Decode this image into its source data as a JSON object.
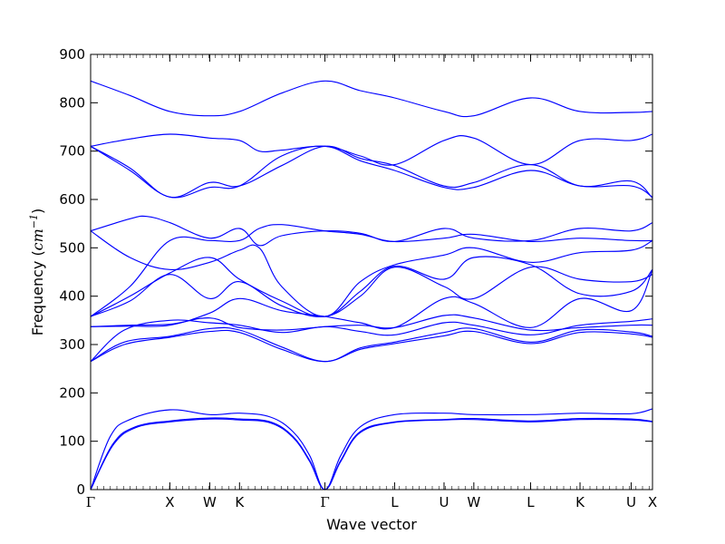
{
  "chart_data": {
    "type": "line",
    "xlabel": "Wave vector",
    "ylabel_text": "Frequency (",
    "ylabel_unit": "cm",
    "ylabel_exp": "−1",
    "ylabel_close": ")",
    "ylim": [
      0,
      900
    ],
    "yticks": [
      0,
      100,
      200,
      300,
      400,
      500,
      600,
      700,
      800,
      900
    ],
    "xlim": [
      0,
      1
    ],
    "high_symmetry_points": [
      {
        "label": "Γ",
        "x": 0.0
      },
      {
        "label": "X",
        "x": 0.141
      },
      {
        "label": "W",
        "x": 0.212
      },
      {
        "label": "K",
        "x": 0.265
      },
      {
        "label": "Γ",
        "x": 0.417
      },
      {
        "label": "L",
        "x": 0.541
      },
      {
        "label": "U",
        "x": 0.629
      },
      {
        "label": "W",
        "x": 0.682
      },
      {
        "label": "L",
        "x": 0.783
      },
      {
        "label": "K",
        "x": 0.871
      },
      {
        "label": "U",
        "x": 0.962
      },
      {
        "label": "X",
        "x": 1.0
      }
    ],
    "series": [
      {
        "points": [
          [
            0,
            0
          ],
          [
            0.035,
            110
          ],
          [
            0.07,
            145
          ],
          [
            0.141,
            165
          ],
          [
            0.212,
            155
          ],
          [
            0.265,
            158
          ],
          [
            0.32,
            150
          ],
          [
            0.36,
            120
          ],
          [
            0.39,
            70
          ],
          [
            0.417,
            0
          ],
          [
            0.445,
            70
          ],
          [
            0.48,
            130
          ],
          [
            0.541,
            155
          ],
          [
            0.629,
            158
          ],
          [
            0.682,
            155
          ],
          [
            0.783,
            155
          ],
          [
            0.871,
            158
          ],
          [
            0.962,
            157
          ],
          [
            1.0,
            167
          ]
        ]
      },
      {
        "points": [
          [
            0,
            0
          ],
          [
            0.04,
            95
          ],
          [
            0.08,
            130
          ],
          [
            0.141,
            142
          ],
          [
            0.212,
            148
          ],
          [
            0.265,
            146
          ],
          [
            0.32,
            140
          ],
          [
            0.36,
            110
          ],
          [
            0.39,
            60
          ],
          [
            0.417,
            0
          ],
          [
            0.445,
            60
          ],
          [
            0.48,
            120
          ],
          [
            0.541,
            140
          ],
          [
            0.629,
            145
          ],
          [
            0.682,
            147
          ],
          [
            0.783,
            142
          ],
          [
            0.871,
            147
          ],
          [
            0.962,
            146
          ],
          [
            1.0,
            141
          ]
        ]
      },
      {
        "points": [
          [
            0,
            0
          ],
          [
            0.04,
            92
          ],
          [
            0.08,
            128
          ],
          [
            0.141,
            140
          ],
          [
            0.212,
            146
          ],
          [
            0.265,
            144
          ],
          [
            0.32,
            138
          ],
          [
            0.36,
            108
          ],
          [
            0.39,
            58
          ],
          [
            0.417,
            0
          ],
          [
            0.445,
            58
          ],
          [
            0.48,
            118
          ],
          [
            0.541,
            139
          ],
          [
            0.629,
            144
          ],
          [
            0.682,
            145
          ],
          [
            0.783,
            140
          ],
          [
            0.871,
            145
          ],
          [
            0.962,
            144
          ],
          [
            1.0,
            140
          ]
        ]
      },
      {
        "points": [
          [
            0,
            265
          ],
          [
            0.06,
            300
          ],
          [
            0.141,
            315
          ],
          [
            0.212,
            327
          ],
          [
            0.265,
            325
          ],
          [
            0.34,
            290
          ],
          [
            0.417,
            265
          ],
          [
            0.48,
            290
          ],
          [
            0.541,
            302
          ],
          [
            0.629,
            318
          ],
          [
            0.682,
            327
          ],
          [
            0.783,
            302
          ],
          [
            0.871,
            325
          ],
          [
            0.962,
            322
          ],
          [
            1.0,
            315
          ]
        ]
      },
      {
        "points": [
          [
            0,
            265
          ],
          [
            0.06,
            305
          ],
          [
            0.141,
            317
          ],
          [
            0.212,
            333
          ],
          [
            0.265,
            330
          ],
          [
            0.34,
            295
          ],
          [
            0.417,
            265
          ],
          [
            0.48,
            293
          ],
          [
            0.541,
            305
          ],
          [
            0.629,
            325
          ],
          [
            0.682,
            333
          ],
          [
            0.783,
            305
          ],
          [
            0.871,
            330
          ],
          [
            0.962,
            326
          ],
          [
            1.0,
            317
          ]
        ]
      },
      {
        "points": [
          [
            0,
            265
          ],
          [
            0.06,
            330
          ],
          [
            0.141,
            350
          ],
          [
            0.212,
            345
          ],
          [
            0.265,
            340
          ],
          [
            0.34,
            325
          ],
          [
            0.417,
            337
          ],
          [
            0.48,
            327
          ],
          [
            0.541,
            320
          ],
          [
            0.629,
            345
          ],
          [
            0.682,
            340
          ],
          [
            0.783,
            320
          ],
          [
            0.871,
            340
          ],
          [
            0.962,
            348
          ],
          [
            1.0,
            353
          ]
        ]
      },
      {
        "points": [
          [
            0,
            337
          ],
          [
            0.07,
            340
          ],
          [
            0.141,
            342
          ],
          [
            0.212,
            355
          ],
          [
            0.265,
            335
          ],
          [
            0.34,
            330
          ],
          [
            0.417,
            337
          ],
          [
            0.48,
            340
          ],
          [
            0.541,
            335
          ],
          [
            0.629,
            360
          ],
          [
            0.682,
            355
          ],
          [
            0.783,
            330
          ],
          [
            0.871,
            335
          ],
          [
            0.962,
            340
          ],
          [
            1.0,
            340
          ]
        ]
      },
      {
        "points": [
          [
            0,
            337
          ],
          [
            0.07,
            338
          ],
          [
            0.141,
            340
          ],
          [
            0.212,
            365
          ],
          [
            0.265,
            395
          ],
          [
            0.34,
            370
          ],
          [
            0.417,
            358
          ],
          [
            0.48,
            345
          ],
          [
            0.541,
            335
          ],
          [
            0.629,
            395
          ],
          [
            0.682,
            385
          ],
          [
            0.783,
            335
          ],
          [
            0.871,
            395
          ],
          [
            0.962,
            370
          ],
          [
            1.0,
            455
          ]
        ]
      },
      {
        "points": [
          [
            0,
            358
          ],
          [
            0.07,
            390
          ],
          [
            0.141,
            445
          ],
          [
            0.212,
            395
          ],
          [
            0.265,
            430
          ],
          [
            0.34,
            380
          ],
          [
            0.417,
            358
          ],
          [
            0.48,
            400
          ],
          [
            0.541,
            460
          ],
          [
            0.629,
            420
          ],
          [
            0.682,
            395
          ],
          [
            0.783,
            460
          ],
          [
            0.871,
            435
          ],
          [
            0.962,
            430
          ],
          [
            1.0,
            445
          ]
        ]
      },
      {
        "points": [
          [
            0,
            358
          ],
          [
            0.07,
            400
          ],
          [
            0.141,
            448
          ],
          [
            0.212,
            480
          ],
          [
            0.265,
            435
          ],
          [
            0.34,
            390
          ],
          [
            0.417,
            358
          ],
          [
            0.48,
            410
          ],
          [
            0.541,
            462
          ],
          [
            0.629,
            435
          ],
          [
            0.682,
            480
          ],
          [
            0.783,
            465
          ],
          [
            0.871,
            405
          ],
          [
            0.962,
            410
          ],
          [
            1.0,
            455
          ]
        ]
      },
      {
        "points": [
          [
            0,
            535
          ],
          [
            0.07,
            480
          ],
          [
            0.141,
            455
          ],
          [
            0.212,
            470
          ],
          [
            0.265,
            495
          ],
          [
            0.3,
            500
          ],
          [
            0.34,
            420
          ],
          [
            0.417,
            358
          ],
          [
            0.48,
            430
          ],
          [
            0.541,
            465
          ],
          [
            0.629,
            485
          ],
          [
            0.682,
            500
          ],
          [
            0.783,
            470
          ],
          [
            0.871,
            490
          ],
          [
            0.962,
            495
          ],
          [
            1.0,
            515
          ]
        ]
      },
      {
        "points": [
          [
            0,
            358
          ],
          [
            0.07,
            420
          ],
          [
            0.141,
            515
          ],
          [
            0.212,
            515
          ],
          [
            0.265,
            515
          ],
          [
            0.3,
            540
          ],
          [
            0.34,
            548
          ],
          [
            0.417,
            535
          ],
          [
            0.48,
            528
          ],
          [
            0.541,
            513
          ],
          [
            0.629,
            520
          ],
          [
            0.682,
            528
          ],
          [
            0.783,
            513
          ],
          [
            0.871,
            520
          ],
          [
            0.962,
            515
          ],
          [
            1.0,
            515
          ]
        ]
      },
      {
        "points": [
          [
            0,
            535
          ],
          [
            0.07,
            560
          ],
          [
            0.1,
            565
          ],
          [
            0.141,
            552
          ],
          [
            0.212,
            520
          ],
          [
            0.265,
            540
          ],
          [
            0.3,
            505
          ],
          [
            0.34,
            525
          ],
          [
            0.417,
            535
          ],
          [
            0.48,
            530
          ],
          [
            0.541,
            513
          ],
          [
            0.629,
            540
          ],
          [
            0.682,
            520
          ],
          [
            0.783,
            515
          ],
          [
            0.871,
            540
          ],
          [
            0.962,
            535
          ],
          [
            1.0,
            552
          ]
        ]
      },
      {
        "points": [
          [
            0,
            710
          ],
          [
            0.07,
            660
          ],
          [
            0.141,
            605
          ],
          [
            0.212,
            625
          ],
          [
            0.265,
            628
          ],
          [
            0.34,
            690
          ],
          [
            0.417,
            710
          ],
          [
            0.48,
            680
          ],
          [
            0.541,
            660
          ],
          [
            0.629,
            625
          ],
          [
            0.682,
            625
          ],
          [
            0.783,
            660
          ],
          [
            0.871,
            628
          ],
          [
            0.962,
            628
          ],
          [
            1.0,
            605
          ]
        ]
      },
      {
        "points": [
          [
            0,
            710
          ],
          [
            0.07,
            665
          ],
          [
            0.141,
            605
          ],
          [
            0.212,
            635
          ],
          [
            0.265,
            628
          ],
          [
            0.34,
            670
          ],
          [
            0.417,
            710
          ],
          [
            0.48,
            685
          ],
          [
            0.541,
            670
          ],
          [
            0.629,
            628
          ],
          [
            0.682,
            635
          ],
          [
            0.783,
            672
          ],
          [
            0.871,
            628
          ],
          [
            0.962,
            638
          ],
          [
            1.0,
            603
          ]
        ]
      },
      {
        "points": [
          [
            0,
            710
          ],
          [
            0.07,
            725
          ],
          [
            0.141,
            735
          ],
          [
            0.212,
            727
          ],
          [
            0.265,
            722
          ],
          [
            0.3,
            700
          ],
          [
            0.34,
            702
          ],
          [
            0.417,
            710
          ],
          [
            0.48,
            690
          ],
          [
            0.541,
            672
          ],
          [
            0.629,
            722
          ],
          [
            0.682,
            727
          ],
          [
            0.783,
            672
          ],
          [
            0.871,
            722
          ],
          [
            0.962,
            722
          ],
          [
            1.0,
            735
          ]
        ]
      },
      {
        "points": [
          [
            0,
            845
          ],
          [
            0.07,
            815
          ],
          [
            0.141,
            782
          ],
          [
            0.212,
            773
          ],
          [
            0.265,
            782
          ],
          [
            0.34,
            820
          ],
          [
            0.417,
            845
          ],
          [
            0.48,
            825
          ],
          [
            0.541,
            810
          ],
          [
            0.629,
            782
          ],
          [
            0.682,
            773
          ],
          [
            0.783,
            810
          ],
          [
            0.871,
            782
          ],
          [
            0.962,
            780
          ],
          [
            1.0,
            782
          ]
        ]
      }
    ]
  }
}
